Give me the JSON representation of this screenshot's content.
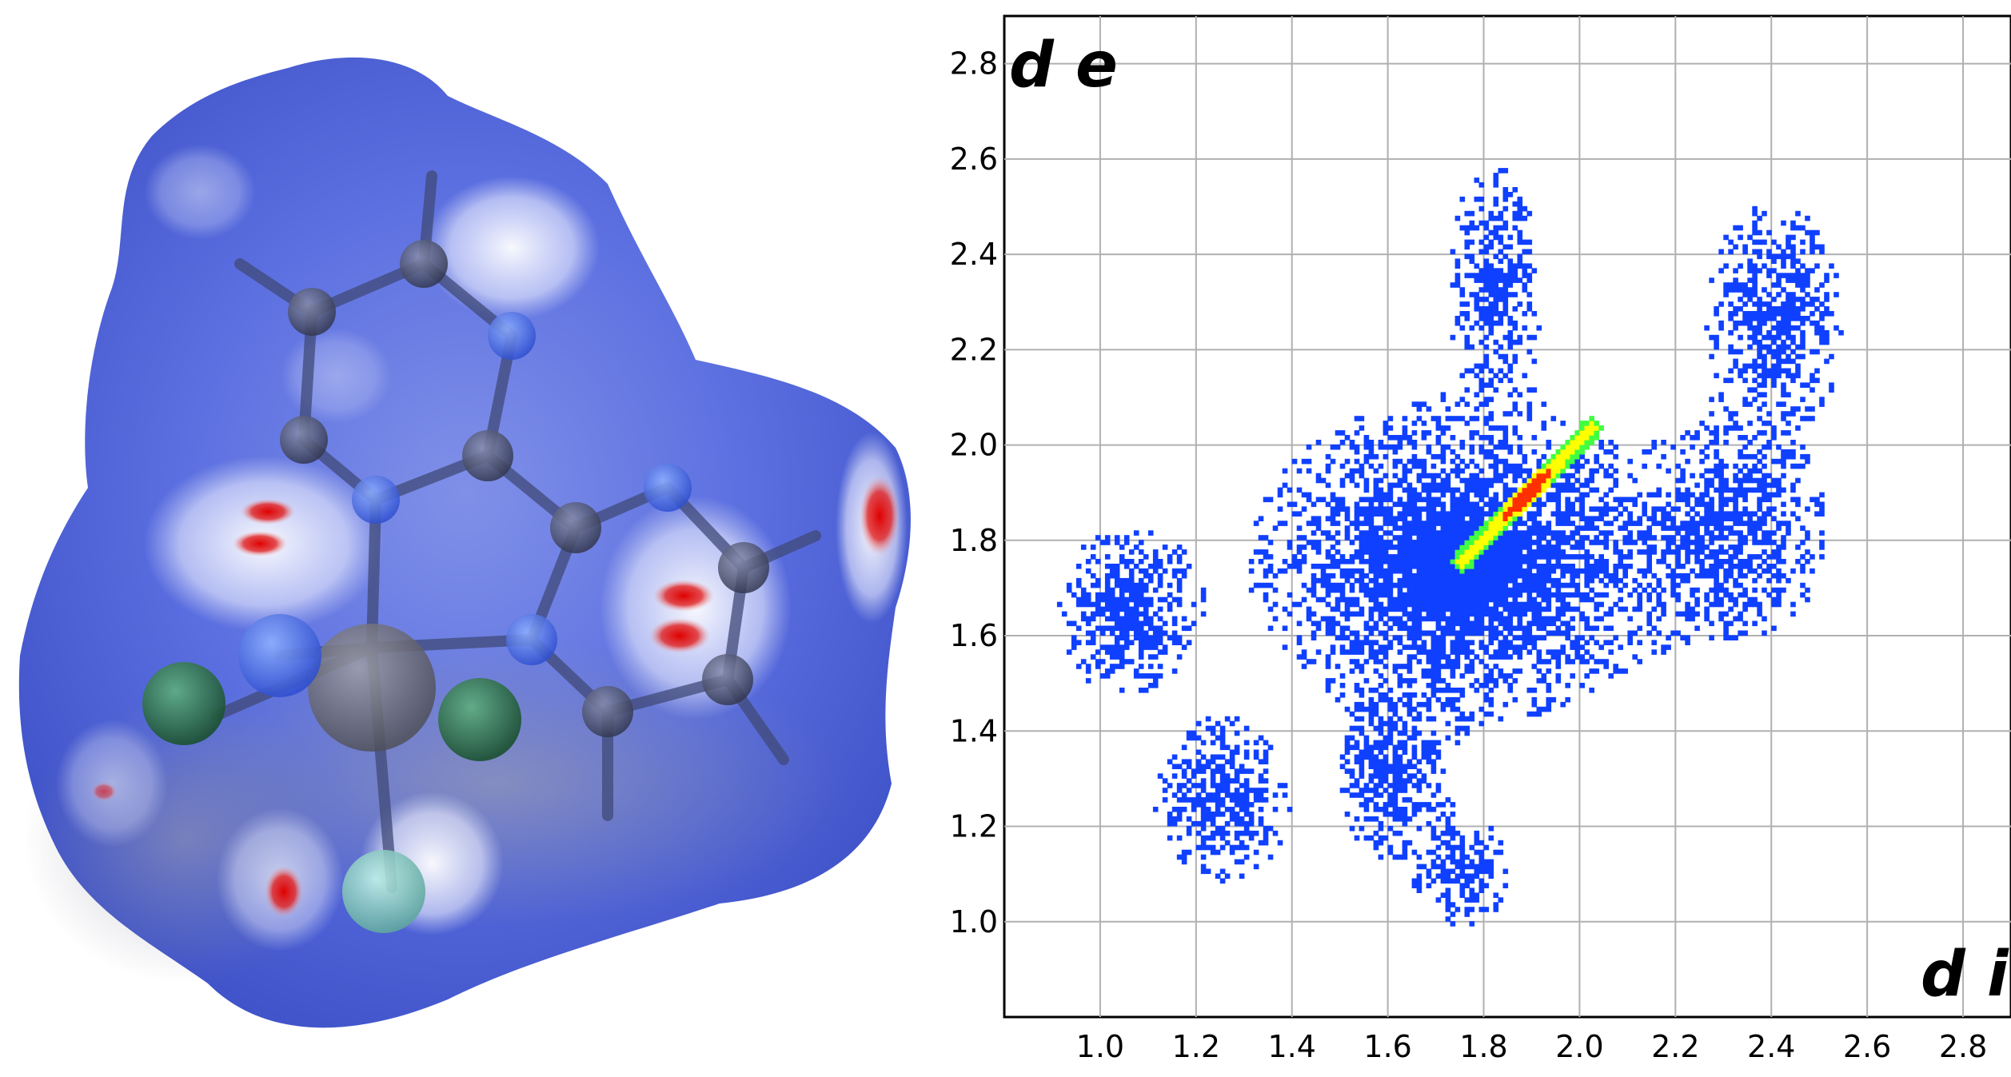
{
  "chart_data": {
    "type": "heatmap",
    "title": "",
    "xlabel": "d i",
    "ylabel": "d e",
    "xlim": [
      0.8,
      2.9
    ],
    "ylim": [
      0.8,
      2.9
    ],
    "grid": true,
    "x_ticks": [
      "1.0",
      "1.2",
      "1.4",
      "1.6",
      "1.8",
      "2.0",
      "2.2",
      "2.4",
      "2.6",
      "2.8"
    ],
    "y_ticks": [
      "1.0",
      "1.2",
      "1.4",
      "1.6",
      "1.8",
      "2.0",
      "2.2",
      "2.4",
      "2.6",
      "2.8"
    ],
    "colormap": [
      "#1040ff",
      "#00a0ff",
      "#00e0c0",
      "#40ff40",
      "#ffff00",
      "#ff3000"
    ],
    "regions": [
      {
        "name": "main-body",
        "x": 1.75,
        "y": 1.75,
        "sx": 0.28,
        "sy": 0.22,
        "density": 0.45
      },
      {
        "name": "upper-left-wing",
        "x": 1.05,
        "y": 1.65,
        "sx": 0.1,
        "sy": 0.12,
        "density": 0.35
      },
      {
        "name": "upper-spike",
        "x": 1.82,
        "y": 2.35,
        "sx": 0.07,
        "sy": 0.17,
        "density": 0.3
      },
      {
        "name": "upper-right-spike",
        "x": 2.4,
        "y": 2.25,
        "sx": 0.1,
        "sy": 0.18,
        "density": 0.3
      },
      {
        "name": "right-lobe",
        "x": 2.3,
        "y": 1.8,
        "sx": 0.15,
        "sy": 0.15,
        "density": 0.3
      },
      {
        "name": "lower-left-spike",
        "x": 1.25,
        "y": 1.25,
        "sx": 0.1,
        "sy": 0.12,
        "density": 0.3
      },
      {
        "name": "lower-middle-spike",
        "x": 1.6,
        "y": 1.3,
        "sx": 0.08,
        "sy": 0.12,
        "density": 0.3
      },
      {
        "name": "lower-right-spike",
        "x": 1.75,
        "y": 1.1,
        "sx": 0.07,
        "sy": 0.08,
        "density": 0.3
      }
    ],
    "ridge": {
      "from": [
        1.75,
        1.75
      ],
      "to": [
        2.02,
        2.03
      ],
      "peak": [
        1.88,
        1.9
      ]
    }
  },
  "surface": {
    "type": "hirshfeld-surface",
    "base_color": "#5a6ee0",
    "contact_color": "#e02020",
    "atom_colors": {
      "carbon": "#4a5068",
      "nitrogen": "#4a6ee8",
      "chlorine": "#2a8a4a",
      "fluorine": "#88d0c8",
      "metal": "#707078"
    }
  }
}
